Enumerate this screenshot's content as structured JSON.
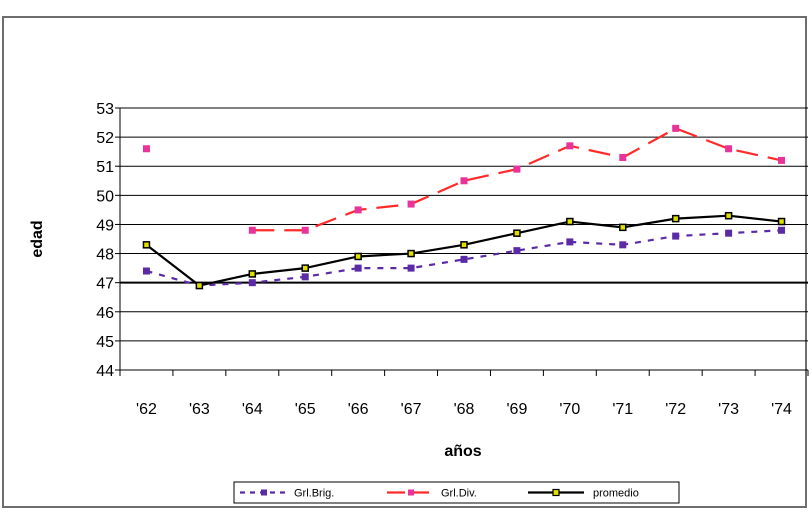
{
  "chart_data": {
    "type": "line",
    "title": "",
    "xlabel": "años",
    "ylabel": "edad",
    "categories": [
      "'62",
      "'63",
      "'64",
      "'65",
      "'66",
      "'67",
      "'68",
      "'69",
      "'70",
      "'71",
      "'72",
      "'73",
      "'74"
    ],
    "ylim": [
      44,
      53
    ],
    "yticks": [
      53,
      52,
      51,
      50,
      49,
      48,
      47,
      46,
      45,
      44
    ],
    "grid": true,
    "legend_position": "bottom",
    "series": [
      {
        "name": "Grl.Brig.",
        "color": "#5b2aa6",
        "line_style": "dashed",
        "values": [
          47.4,
          46.9,
          47.0,
          47.2,
          47.5,
          47.5,
          47.8,
          48.1,
          48.4,
          48.3,
          48.6,
          48.7,
          48.8
        ]
      },
      {
        "name": "Grl.Div.",
        "color": "#ff2a2a",
        "marker_color": "#e8339a",
        "line_style": "dashed",
        "values": [
          51.6,
          null,
          48.8,
          48.8,
          49.5,
          49.7,
          50.5,
          50.9,
          51.7,
          51.3,
          52.3,
          51.6,
          51.2
        ]
      },
      {
        "name": "promedio",
        "color": "#000000",
        "marker_color": "#e0e000",
        "line_style": "solid",
        "values": [
          48.3,
          46.9,
          47.3,
          47.5,
          47.9,
          48.0,
          48.3,
          48.7,
          49.1,
          48.9,
          49.2,
          49.3,
          49.1
        ]
      }
    ]
  }
}
